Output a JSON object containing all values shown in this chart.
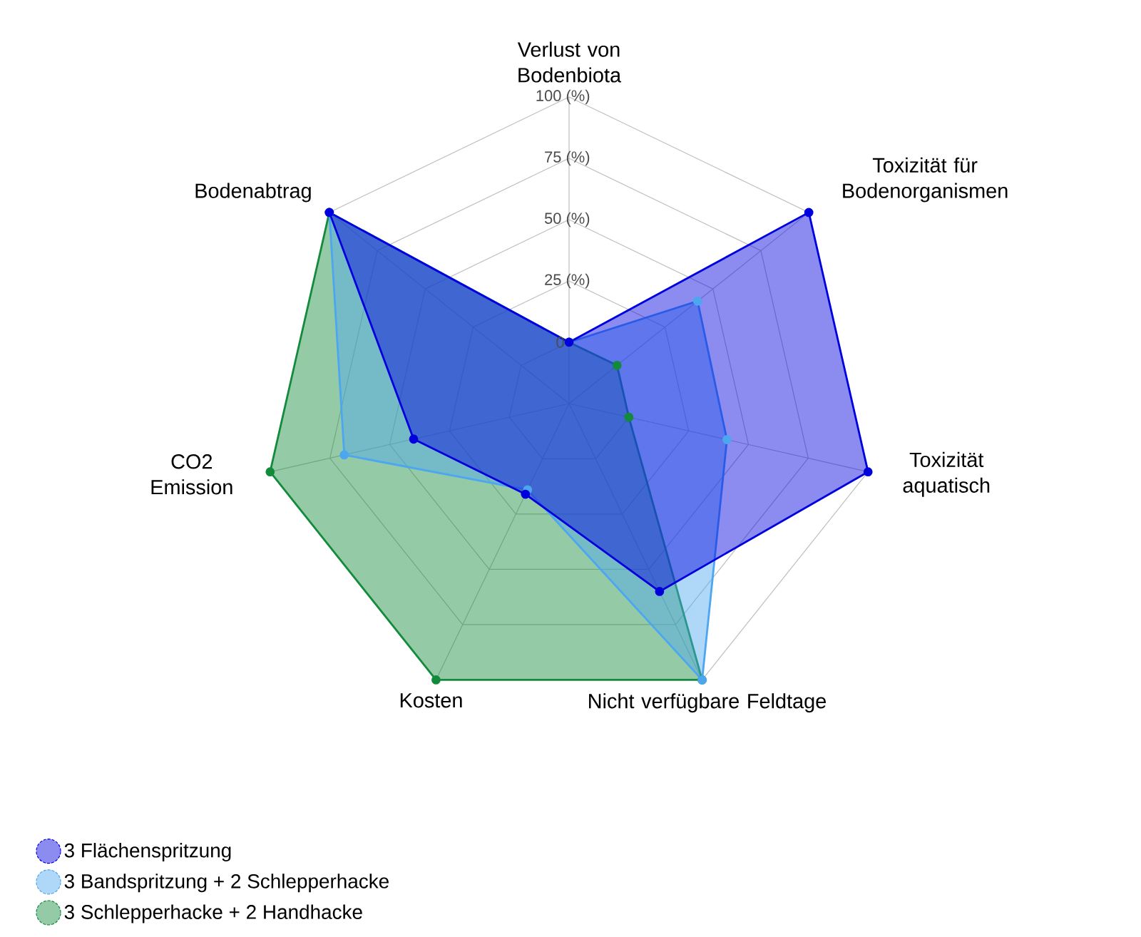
{
  "chart_data": {
    "type": "radar",
    "categories": [
      "Verlust von Bodenbiota",
      "Toxizität für Bodenorganismen",
      "Toxizität aquatisch",
      "Nicht verfügbare Feldtage",
      "Kosten",
      "CO2 Emission",
      "Bodenabtrag"
    ],
    "series": [
      {
        "name": "3 Flächenspritzung",
        "color": "#0000dd",
        "values": [
          0,
          100,
          100,
          60,
          16,
          40,
          100
        ]
      },
      {
        "name": "3 Bandspritzung + 2 Schlepperhacke",
        "color": "#4ca6f0",
        "values": [
          0,
          42,
          41,
          100,
          14,
          69,
          100
        ]
      },
      {
        "name": "3 Schlepperhacke + 2 Handhacke",
        "color": "#138a3c",
        "values": [
          0,
          0,
          0,
          100,
          100,
          100,
          100
        ]
      }
    ],
    "ylim": [
      -25,
      100
    ],
    "yticks": [
      {
        "value": 0,
        "label": "0"
      },
      {
        "value": 25,
        "label": "25 (%)"
      },
      {
        "value": 50,
        "label": "50 (%)"
      },
      {
        "value": 75,
        "label": "75 (%)"
      },
      {
        "value": 100,
        "label": "100 (%)"
      }
    ],
    "grid": true,
    "marker": "circle",
    "legend": "bottom left"
  }
}
